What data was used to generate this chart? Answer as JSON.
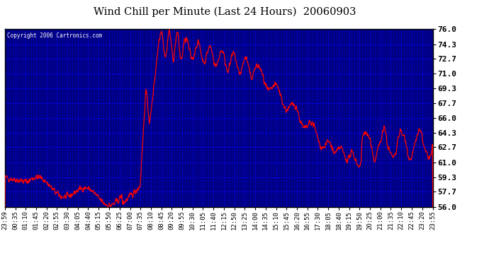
{
  "title": "Wind Chill per Minute (Last 24 Hours)  20060903",
  "copyright": "Copyright 2006 Cartronics.com",
  "plot_bg_color": "#000080",
  "line_color": "#FF0000",
  "text_color_axis": "#000000",
  "text_color_plot": "#FFFFFF",
  "grid_color": "#0000FF",
  "outer_bg": "#FFFFFF",
  "title_bg": "#FFFFFF",
  "border_color": "#000000",
  "ylim": [
    56.0,
    76.0
  ],
  "yticks": [
    56.0,
    57.7,
    59.3,
    61.0,
    62.7,
    64.3,
    66.0,
    67.7,
    69.3,
    71.0,
    72.7,
    74.3,
    76.0
  ],
  "x_labels": [
    "23:59",
    "00:35",
    "01:10",
    "01:45",
    "02:20",
    "02:55",
    "03:30",
    "04:05",
    "04:40",
    "05:15",
    "05:50",
    "06:25",
    "07:00",
    "07:35",
    "08:10",
    "08:45",
    "09:20",
    "09:55",
    "10:30",
    "11:05",
    "11:40",
    "12:15",
    "12:50",
    "13:25",
    "14:00",
    "14:35",
    "15:10",
    "15:45",
    "16:20",
    "16:55",
    "17:30",
    "18:05",
    "18:40",
    "19:15",
    "19:50",
    "20:25",
    "21:00",
    "21:35",
    "22:10",
    "22:45",
    "23:20",
    "23:55"
  ],
  "n_major_vgrid": 42,
  "n_minor_vgrid": 4,
  "n_major_hgrid": 13
}
